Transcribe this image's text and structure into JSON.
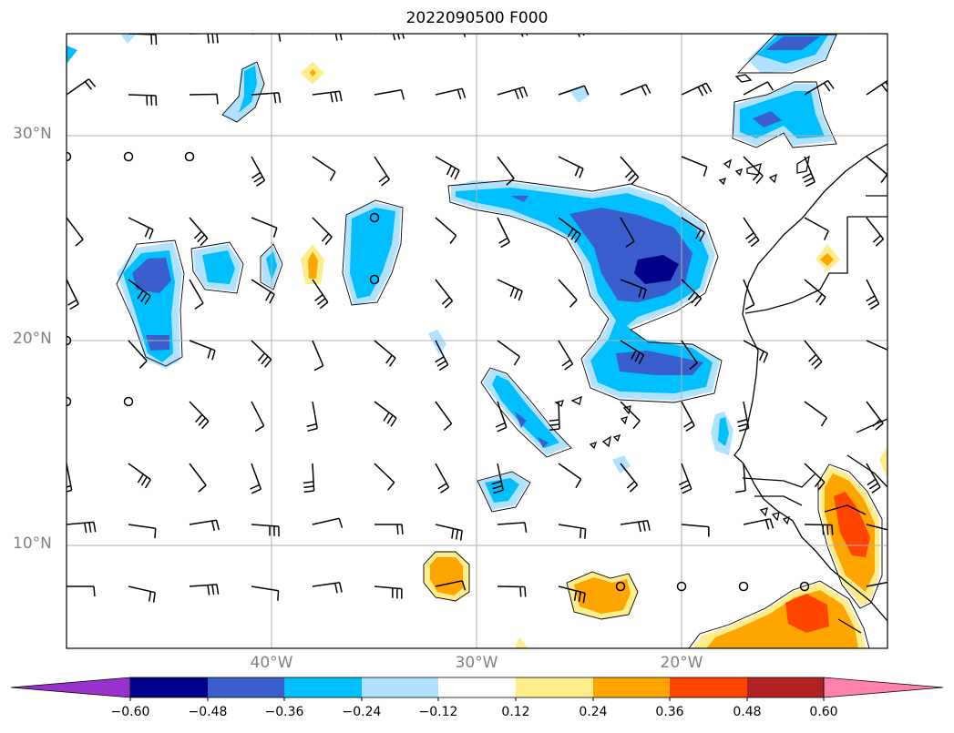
{
  "title": "2022090500 F000",
  "lat_labels": [
    "30°N",
    "20°N",
    "10°N"
  ],
  "lon_labels": [
    "40°W",
    "30°W",
    "20°W"
  ],
  "colorbar": {
    "tick_labels": [
      "−0.60",
      "−0.48",
      "−0.36",
      "−0.24",
      "−0.12",
      "0.12",
      "0.24",
      "0.36",
      "0.48",
      "0.60"
    ],
    "colors": [
      "#9932cc",
      "#00008b",
      "#3a5fcd",
      "#00bfff",
      "#b0e2ff",
      "#ffffff",
      "#ffec8b",
      "#ffa500",
      "#ff4500",
      "#b22222",
      "#ff82ab"
    ]
  },
  "fill_colors": {
    "light_blue": "#b0e2ff",
    "blue": "#00bfff",
    "mid_blue": "#3a5fcd",
    "dark_blue": "#00008b",
    "light_yellow": "#ffec8b",
    "orange": "#ffa500",
    "red_orange": "#ff4500"
  }
}
